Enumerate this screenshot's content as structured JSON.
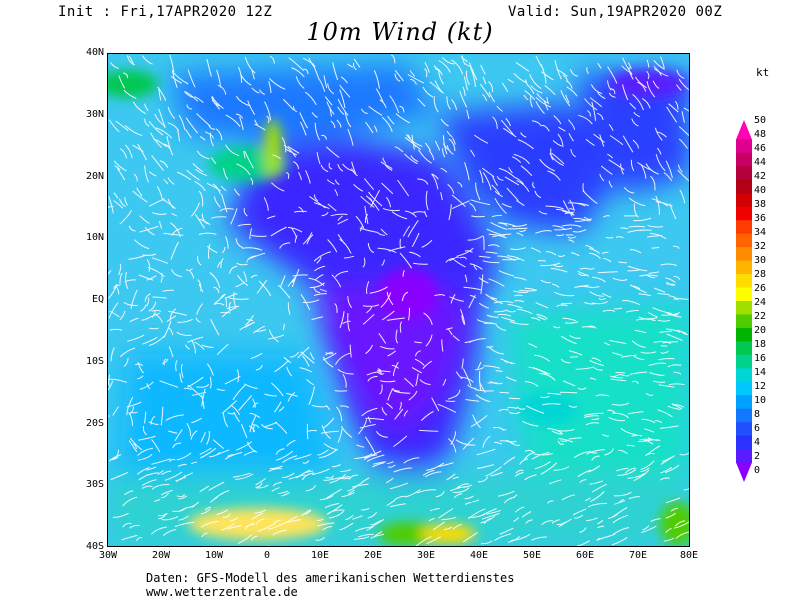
{
  "header": {
    "init": "Init : Fri,17APR2020 12Z",
    "title": "10m Wind (kt)",
    "valid": "Valid: Sun,19APR2020 00Z"
  },
  "map": {
    "lat_labels": [
      "40N",
      "30N",
      "20N",
      "10N",
      "EQ",
      "10S",
      "20S",
      "30S",
      "40S"
    ],
    "lon_labels": [
      "30W",
      "20W",
      "10W",
      "0",
      "10E",
      "20E",
      "30E",
      "40E",
      "50E",
      "60E",
      "70E",
      "80E"
    ],
    "lat_range": [
      -40,
      40
    ],
    "lon_range": [
      -30,
      80
    ]
  },
  "legend": {
    "unit": "kt",
    "levels": [
      "0",
      "2",
      "4",
      "6",
      "8",
      "10",
      "12",
      "14",
      "16",
      "18",
      "20",
      "22",
      "24",
      "26",
      "28",
      "30",
      "32",
      "34",
      "36",
      "38",
      "40",
      "42",
      "44",
      "46",
      "48",
      "50"
    ],
    "colors": [
      "#8a00ff",
      "#5a1cff",
      "#2a32ff",
      "#2050ff",
      "#1478ff",
      "#00a0ff",
      "#00c8ff",
      "#00d6d6",
      "#00d28c",
      "#00c850",
      "#00b400",
      "#50cc00",
      "#a0e000",
      "#ffff00",
      "#ffdc00",
      "#ffb400",
      "#ff8c00",
      "#ff6400",
      "#ff3c00",
      "#f00000",
      "#d20000",
      "#b40014",
      "#b4003c",
      "#c80064",
      "#dc008c",
      "#ff00b4"
    ]
  },
  "source": {
    "line1": "Daten: GFS-Modell des amerikanischen Wetterdienstes",
    "line2": "www.wetterzentrale.de"
  }
}
